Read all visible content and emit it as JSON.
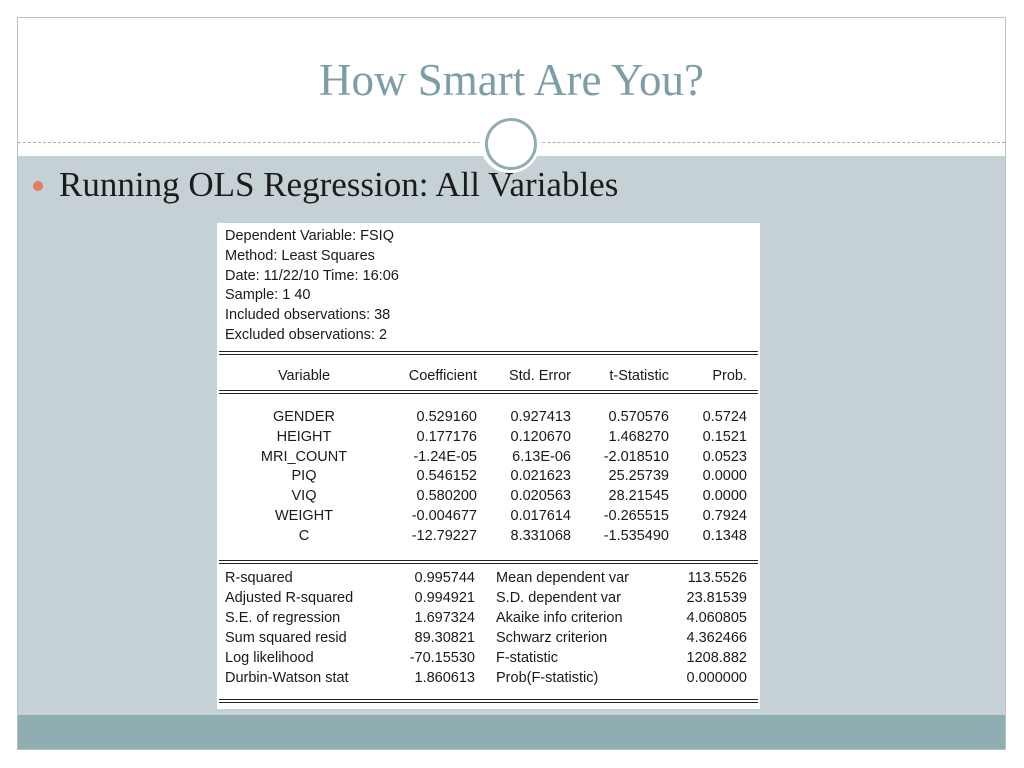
{
  "slide": {
    "title": "How Smart Are You?",
    "bullet": "Running OLS Regression: All Variables"
  },
  "regression": {
    "header": [
      "Dependent Variable: FSIQ",
      "Method: Least Squares",
      "Date: 11/22/10   Time: 16:06",
      "Sample: 1 40",
      "Included observations: 38",
      "Excluded observations: 2"
    ],
    "columns": [
      "Variable",
      "Coefficient",
      "Std. Error",
      "t-Statistic",
      "Prob."
    ],
    "rows": [
      [
        "GENDER",
        "0.529160",
        "0.927413",
        "0.570576",
        "0.5724"
      ],
      [
        "HEIGHT",
        "0.177176",
        "0.120670",
        "1.468270",
        "0.1521"
      ],
      [
        "MRI_COUNT",
        "-1.24E-05",
        "6.13E-06",
        "-2.018510",
        "0.0523"
      ],
      [
        "PIQ",
        "0.546152",
        "0.021623",
        "25.25739",
        "0.0000"
      ],
      [
        "VIQ",
        "0.580200",
        "0.020563",
        "28.21545",
        "0.0000"
      ],
      [
        "WEIGHT",
        "-0.004677",
        "0.017614",
        "-0.265515",
        "0.7924"
      ],
      [
        "C",
        "-12.79227",
        "8.331068",
        "-1.535490",
        "0.1348"
      ]
    ],
    "stats": [
      [
        "R-squared",
        "0.995744",
        "Mean dependent var",
        "113.5526"
      ],
      [
        "Adjusted R-squared",
        "0.994921",
        "S.D. dependent var",
        "23.81539"
      ],
      [
        "S.E. of regression",
        "1.697324",
        "Akaike info criterion",
        "4.060805"
      ],
      [
        "Sum squared resid",
        "89.30821",
        "Schwarz criterion",
        "4.362466"
      ],
      [
        "Log likelihood",
        "-70.15530",
        "F-statistic",
        "1208.882"
      ],
      [
        "Durbin-Watson stat",
        "1.860613",
        "Prob(F-statistic)",
        "0.000000"
      ]
    ]
  }
}
